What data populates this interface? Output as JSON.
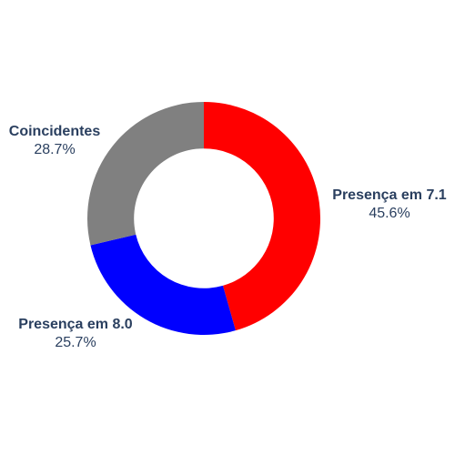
{
  "chart_data": {
    "type": "pie",
    "hole": 0.6,
    "legend": "none",
    "label_color": "#2a3f5f",
    "slices": [
      {
        "label": "Presença em 7.1",
        "value": 45.6,
        "percent_text": "45.6%",
        "color": "#ff0000"
      },
      {
        "label": "Presença em 8.0",
        "value": 25.7,
        "percent_text": "25.7%",
        "color": "#0000ff"
      },
      {
        "label": "Coincidentes",
        "value": 28.7,
        "percent_text": "28.7%",
        "color": "#808080"
      }
    ]
  }
}
